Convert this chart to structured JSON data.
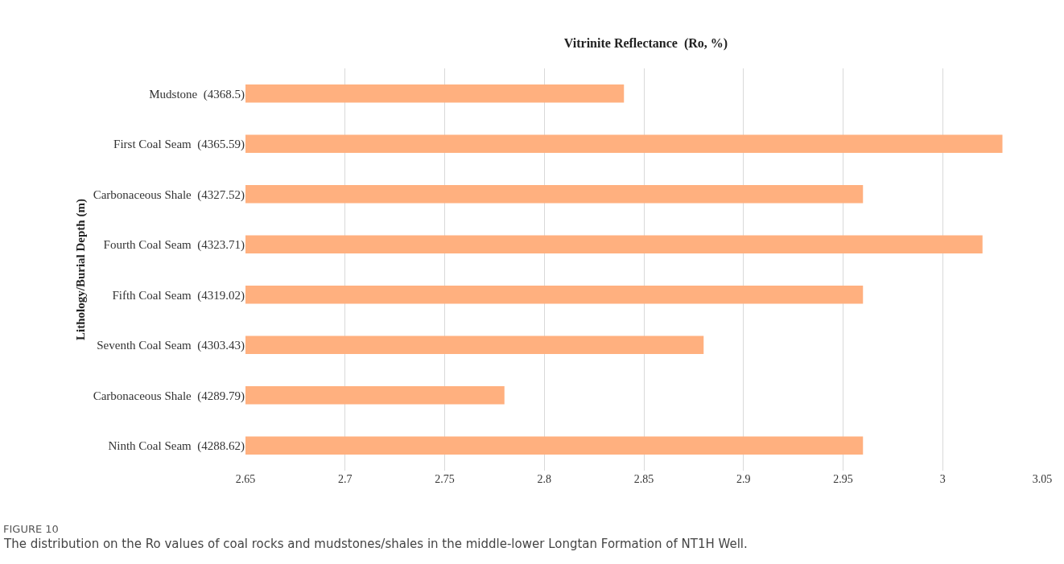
{
  "chart_data": {
    "type": "bar",
    "orientation": "horizontal",
    "title": "Vitrinite Reflectance  (Ro, %)",
    "ylabel": "Lithology/Burial Depth (m)",
    "categories": [
      "Mudstone  (4368.5)",
      "First Coal Seam  (4365.59)",
      "Carbonaceous Shale  (4327.52)",
      "Fourth Coal Seam  (4323.71)",
      "Fifth Coal Seam  (4319.02)",
      "Seventh Coal Seam  (4303.43)",
      "Carbonaceous Shale  (4289.79)",
      "Ninth Coal Seam  (4288.62)"
    ],
    "values": [
      2.84,
      3.03,
      2.96,
      3.02,
      2.96,
      2.88,
      2.78,
      2.96
    ],
    "color": "#ffb07f",
    "xlim": [
      2.65,
      3.05
    ],
    "xticks": [
      2.65,
      2.7,
      2.75,
      2.8,
      2.85,
      2.9,
      2.95,
      3,
      3.05
    ],
    "grid": "x",
    "legend": false,
    "annotations": [
      "FIGURE 10",
      "The distribution on the Ro values of coal rocks and mudstones/shales in the middle-lower Longtan Formation of NT1H Well."
    ]
  }
}
